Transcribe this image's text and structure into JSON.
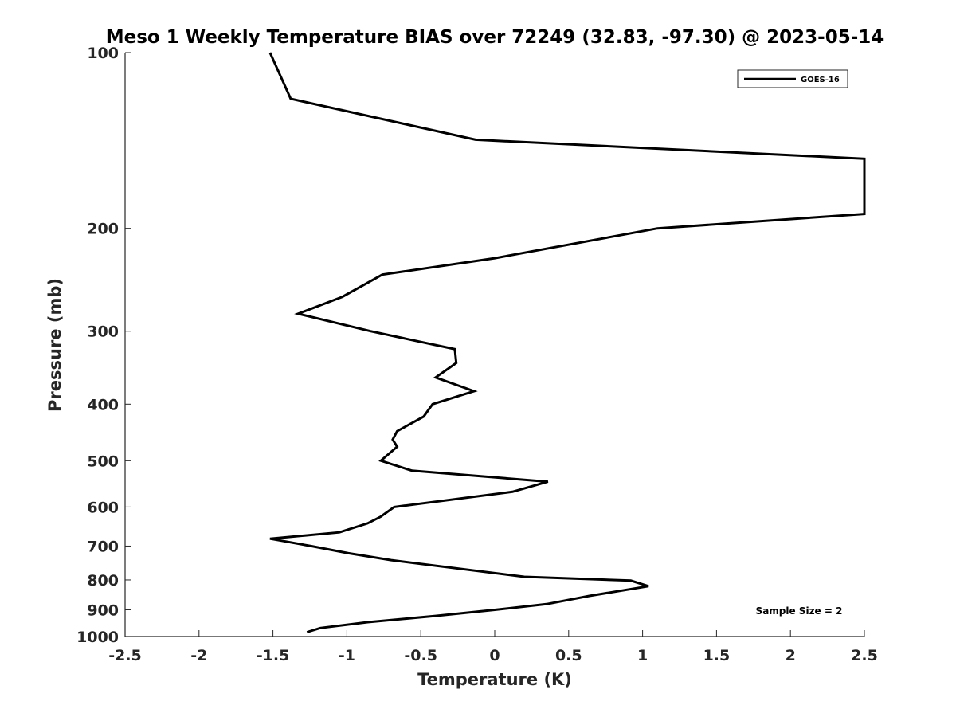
{
  "chart_data": {
    "type": "line",
    "title": "Meso 1 Weekly Temperature BIAS over 72249 (32.83, -97.30) @ 2023-05-14",
    "xlabel": "Temperature (K)",
    "ylabel": "Pressure (mb)",
    "xlim": [
      -2.5,
      2.5
    ],
    "ylim": [
      100,
      1000
    ],
    "y_scale": "log",
    "y_reversed": true,
    "x_ticks": [
      -2.5,
      -2,
      -1.5,
      -1,
      -0.5,
      0,
      0.5,
      1,
      1.5,
      2,
      2.5
    ],
    "x_tick_labels": [
      "-2.5",
      "-2",
      "-1.5",
      "-1",
      "-0.5",
      "0",
      "0.5",
      "1",
      "1.5",
      "2",
      "2.5"
    ],
    "y_ticks": [
      100,
      200,
      300,
      400,
      500,
      600,
      700,
      800,
      900,
      1000
    ],
    "y_tick_labels": [
      "100",
      "200",
      "300",
      "400",
      "500",
      "600",
      "700",
      "800",
      "900",
      "1000"
    ],
    "grid": false,
    "legend_position": "top-right",
    "annotation": "Sample Size = 2",
    "series": [
      {
        "name": "GOES-16",
        "color": "#000000",
        "points": [
          {
            "x": -1.52,
            "y": 100
          },
          {
            "x": -1.38,
            "y": 120
          },
          {
            "x": -0.13,
            "y": 141
          },
          {
            "x": 2.5,
            "y": 152
          },
          {
            "x": 2.5,
            "y": 189
          },
          {
            "x": 1.1,
            "y": 200
          },
          {
            "x": 0,
            "y": 225
          },
          {
            "x": -0.76,
            "y": 240
          },
          {
            "x": -1.03,
            "y": 262
          },
          {
            "x": -1.33,
            "y": 280
          },
          {
            "x": -0.84,
            "y": 300
          },
          {
            "x": -0.27,
            "y": 322
          },
          {
            "x": -0.26,
            "y": 340
          },
          {
            "x": -0.4,
            "y": 360
          },
          {
            "x": -0.14,
            "y": 380
          },
          {
            "x": -0.42,
            "y": 400
          },
          {
            "x": -0.48,
            "y": 420
          },
          {
            "x": -0.66,
            "y": 445
          },
          {
            "x": -0.69,
            "y": 460
          },
          {
            "x": -0.66,
            "y": 473
          },
          {
            "x": -0.77,
            "y": 500
          },
          {
            "x": -0.56,
            "y": 520
          },
          {
            "x": 0.36,
            "y": 543
          },
          {
            "x": 0.12,
            "y": 565
          },
          {
            "x": -0.68,
            "y": 600
          },
          {
            "x": -0.77,
            "y": 623
          },
          {
            "x": -0.86,
            "y": 640
          },
          {
            "x": -1.05,
            "y": 663
          },
          {
            "x": -1.52,
            "y": 680
          },
          {
            "x": -1.24,
            "y": 700
          },
          {
            "x": -0.99,
            "y": 720
          },
          {
            "x": -0.7,
            "y": 740
          },
          {
            "x": 0.2,
            "y": 790
          },
          {
            "x": 0.92,
            "y": 802
          },
          {
            "x": 1.04,
            "y": 820
          },
          {
            "x": 0.64,
            "y": 852
          },
          {
            "x": 0.35,
            "y": 880
          },
          {
            "x": 0,
            "y": 900
          },
          {
            "x": -0.4,
            "y": 922
          },
          {
            "x": -0.86,
            "y": 945
          },
          {
            "x": -1.18,
            "y": 967
          },
          {
            "x": -1.27,
            "y": 983
          }
        ]
      }
    ]
  }
}
